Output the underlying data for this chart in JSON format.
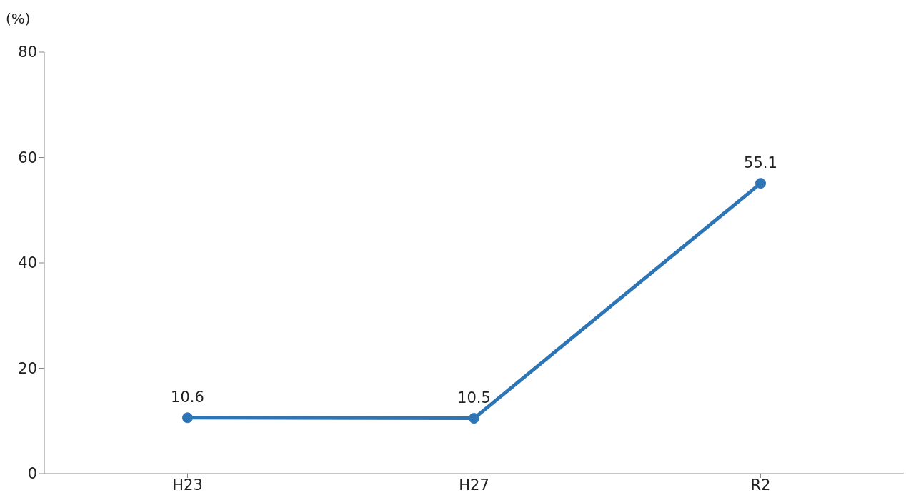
{
  "chart_data": {
    "type": "line",
    "ylabel": "(%)",
    "categories": [
      "H23",
      "H27",
      "R2"
    ],
    "series": [
      {
        "color": "#2e75b6",
        "values": [
          10.6,
          10.5,
          55.1
        ]
      }
    ],
    "ylim": [
      0,
      80
    ],
    "yticks": [
      0,
      20,
      40,
      60,
      80
    ],
    "data_labels": true,
    "marker": "circle",
    "line_style": "solid"
  }
}
